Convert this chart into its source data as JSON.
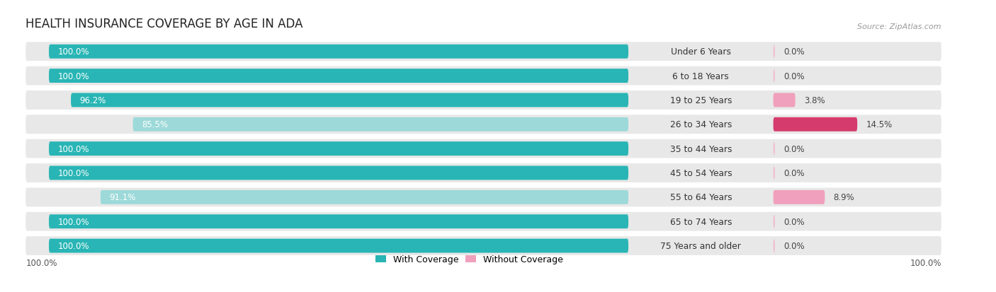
{
  "title": "HEALTH INSURANCE COVERAGE BY AGE IN ADA",
  "source": "Source: ZipAtlas.com",
  "categories": [
    "Under 6 Years",
    "6 to 18 Years",
    "19 to 25 Years",
    "26 to 34 Years",
    "35 to 44 Years",
    "45 to 54 Years",
    "55 to 64 Years",
    "65 to 74 Years",
    "75 Years and older"
  ],
  "with_coverage": [
    100.0,
    100.0,
    96.2,
    85.5,
    100.0,
    100.0,
    91.1,
    100.0,
    100.0
  ],
  "without_coverage": [
    0.0,
    0.0,
    3.8,
    14.5,
    0.0,
    0.0,
    8.9,
    0.0,
    0.0
  ],
  "color_with_full": "#29b5b5",
  "color_with_partial": "#9dd9d9",
  "color_without_high": "#d63b6e",
  "color_without_low": "#f0a0bc",
  "color_without_zero": "#f0c0d0",
  "row_bg": "#e8e8e8",
  "fig_bg": "#ffffff",
  "title_fontsize": 12,
  "source_fontsize": 8,
  "bar_label_fontsize": 8.5,
  "cat_label_fontsize": 8.8,
  "axis_label_left": "100.0%",
  "axis_label_right": "100.0%",
  "legend_with": "With Coverage",
  "legend_without": "Without Coverage"
}
